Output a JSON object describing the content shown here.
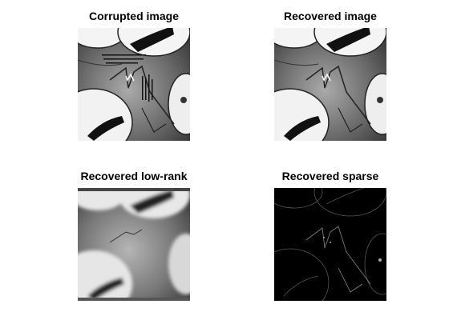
{
  "figure": {
    "panels": [
      {
        "id": "corrupted",
        "title": "Corrupted image"
      },
      {
        "id": "recovered",
        "title": "Recovered image"
      },
      {
        "id": "lowrank",
        "title": "Recovered low-rank"
      },
      {
        "id": "sparse",
        "title": "Recovered sparse"
      }
    ]
  }
}
